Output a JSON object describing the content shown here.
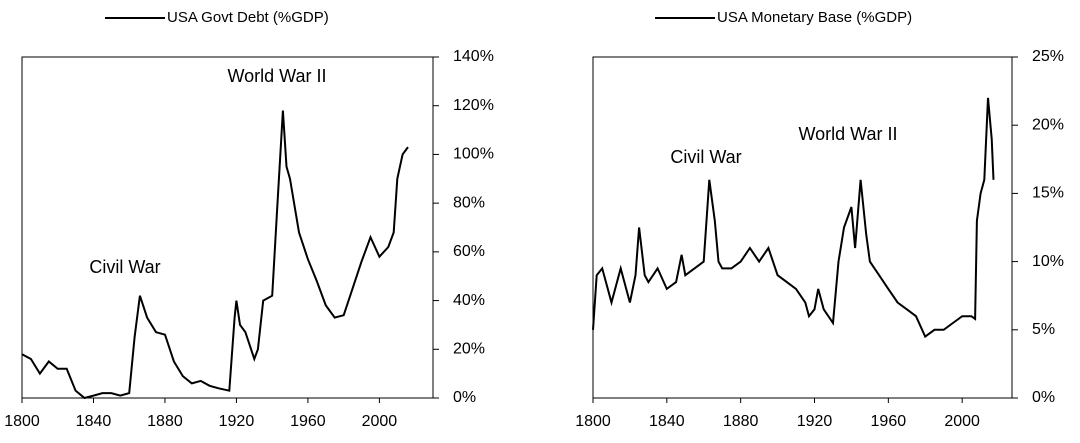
{
  "chart_data": [
    {
      "type": "line",
      "annotations": [
        "Civil War",
        "World War II"
      ],
      "x": [
        1800,
        1805,
        1810,
        1815,
        1820,
        1825,
        1830,
        1835,
        1840,
        1845,
        1850,
        1855,
        1860,
        1863,
        1866,
        1870,
        1875,
        1880,
        1885,
        1890,
        1895,
        1900,
        1905,
        1910,
        1916,
        1919,
        1920,
        1922,
        1925,
        1930,
        1932,
        1935,
        1940,
        1943,
        1946,
        1948,
        1950,
        1955,
        1960,
        1965,
        1970,
        1975,
        1980,
        1985,
        1990,
        1995,
        2000,
        2005,
        2008,
        2010,
        2013,
        2016
      ],
      "series": [
        {
          "name": "USA Govt Debt (%GDP)",
          "color": "#000000",
          "values": [
            18,
            16,
            10,
            15,
            12,
            12,
            3,
            0,
            1,
            2,
            2,
            1,
            2,
            25,
            42,
            33,
            27,
            26,
            15,
            9,
            6,
            7,
            5,
            4,
            3,
            33,
            40,
            30,
            27,
            16,
            20,
            40,
            42,
            80,
            118,
            95,
            90,
            68,
            57,
            48,
            38,
            33,
            34,
            45,
            56,
            66,
            58,
            62,
            68,
            90,
            100,
            103
          ]
        }
      ],
      "xlim": [
        1800,
        2030
      ],
      "xticks": [
        1800,
        1840,
        1880,
        1920,
        1960,
        2000
      ],
      "ylim": [
        0,
        140
      ],
      "yticks": [
        {
          "value": 0,
          "label": "0%"
        },
        {
          "value": 20,
          "label": "20%"
        },
        {
          "value": 40,
          "label": "40%"
        },
        {
          "value": 60,
          "label": "60%"
        },
        {
          "value": 80,
          "label": "80%"
        },
        {
          "value": 100,
          "label": "100%"
        },
        {
          "value": 120,
          "label": "120%"
        },
        {
          "value": 140,
          "label": "140%"
        }
      ]
    },
    {
      "type": "line",
      "annotations": [
        "Civil War",
        "World War II"
      ],
      "x": [
        1800,
        1802,
        1805,
        1810,
        1815,
        1818,
        1820,
        1823,
        1825,
        1828,
        1830,
        1835,
        1840,
        1845,
        1848,
        1850,
        1855,
        1860,
        1863,
        1866,
        1868,
        1870,
        1875,
        1880,
        1885,
        1890,
        1895,
        1900,
        1905,
        1910,
        1915,
        1917,
        1920,
        1922,
        1925,
        1930,
        1933,
        1936,
        1940,
        1942,
        1945,
        1948,
        1950,
        1955,
        1960,
        1965,
        1970,
        1975,
        1980,
        1985,
        1990,
        1995,
        2000,
        2005,
        2007,
        2008,
        2010,
        2012,
        2014,
        2016,
        2017
      ],
      "series": [
        {
          "name": "USA Monetary Base (%GDP)",
          "color": "#000000",
          "values": [
            5,
            9,
            9.5,
            7,
            9.5,
            8,
            7,
            9,
            12.5,
            9,
            8.5,
            9.5,
            8,
            8.5,
            10.5,
            9,
            9.5,
            10,
            16,
            13,
            10,
            9.5,
            9.5,
            10,
            11,
            10,
            11,
            9,
            8.5,
            8,
            7,
            6,
            6.5,
            8,
            6.5,
            5.5,
            10,
            12.5,
            14,
            11,
            16,
            12,
            10,
            9,
            8,
            7,
            6.5,
            6,
            4.5,
            5,
            5,
            5.5,
            6,
            6,
            5.8,
            13,
            15,
            16,
            22,
            19,
            16
          ]
        }
      ],
      "xlim": [
        1800,
        2027
      ],
      "xticks": [
        1800,
        1840,
        1880,
        1920,
        1960,
        2000
      ],
      "ylim": [
        0,
        25
      ],
      "yticks": [
        {
          "value": 0,
          "label": "0%"
        },
        {
          "value": 5,
          "label": "5%"
        },
        {
          "value": 10,
          "label": "10%"
        },
        {
          "value": 15,
          "label": "15%"
        },
        {
          "value": 20,
          "label": "20%"
        },
        {
          "value": 25,
          "label": "25%"
        }
      ]
    }
  ]
}
